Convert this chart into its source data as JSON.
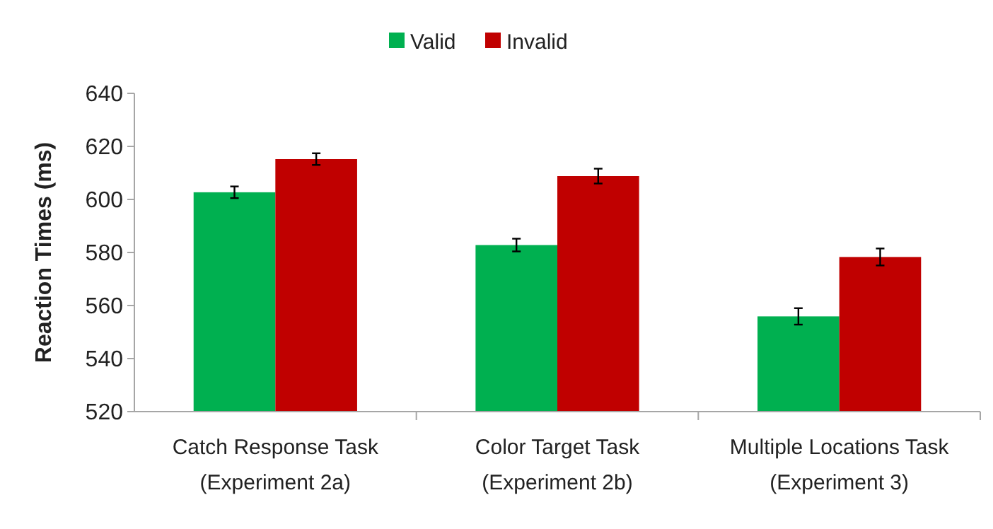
{
  "chart_data": {
    "type": "bar",
    "ylabel": "Reaction Times (ms)",
    "categories": [
      "Catch Response Task\n(Experiment 2a)",
      "Color Target Task\n(Experiment 2b)",
      "Multiple Locations Task\n(Experiment 3)"
    ],
    "series": [
      {
        "name": "Valid",
        "color": "#00b050",
        "values": [
          602.7,
          582.8,
          555.9
        ],
        "errors": [
          2.2,
          2.4,
          3.1
        ]
      },
      {
        "name": "Invalid",
        "color": "#c00000",
        "values": [
          615.2,
          608.8,
          578.3
        ],
        "errors": [
          2.2,
          2.8,
          3.2
        ]
      }
    ],
    "ylim": [
      520,
      640
    ],
    "yticks": [
      520,
      540,
      560,
      580,
      600,
      620,
      640
    ],
    "grid": false,
    "legend": "top"
  }
}
